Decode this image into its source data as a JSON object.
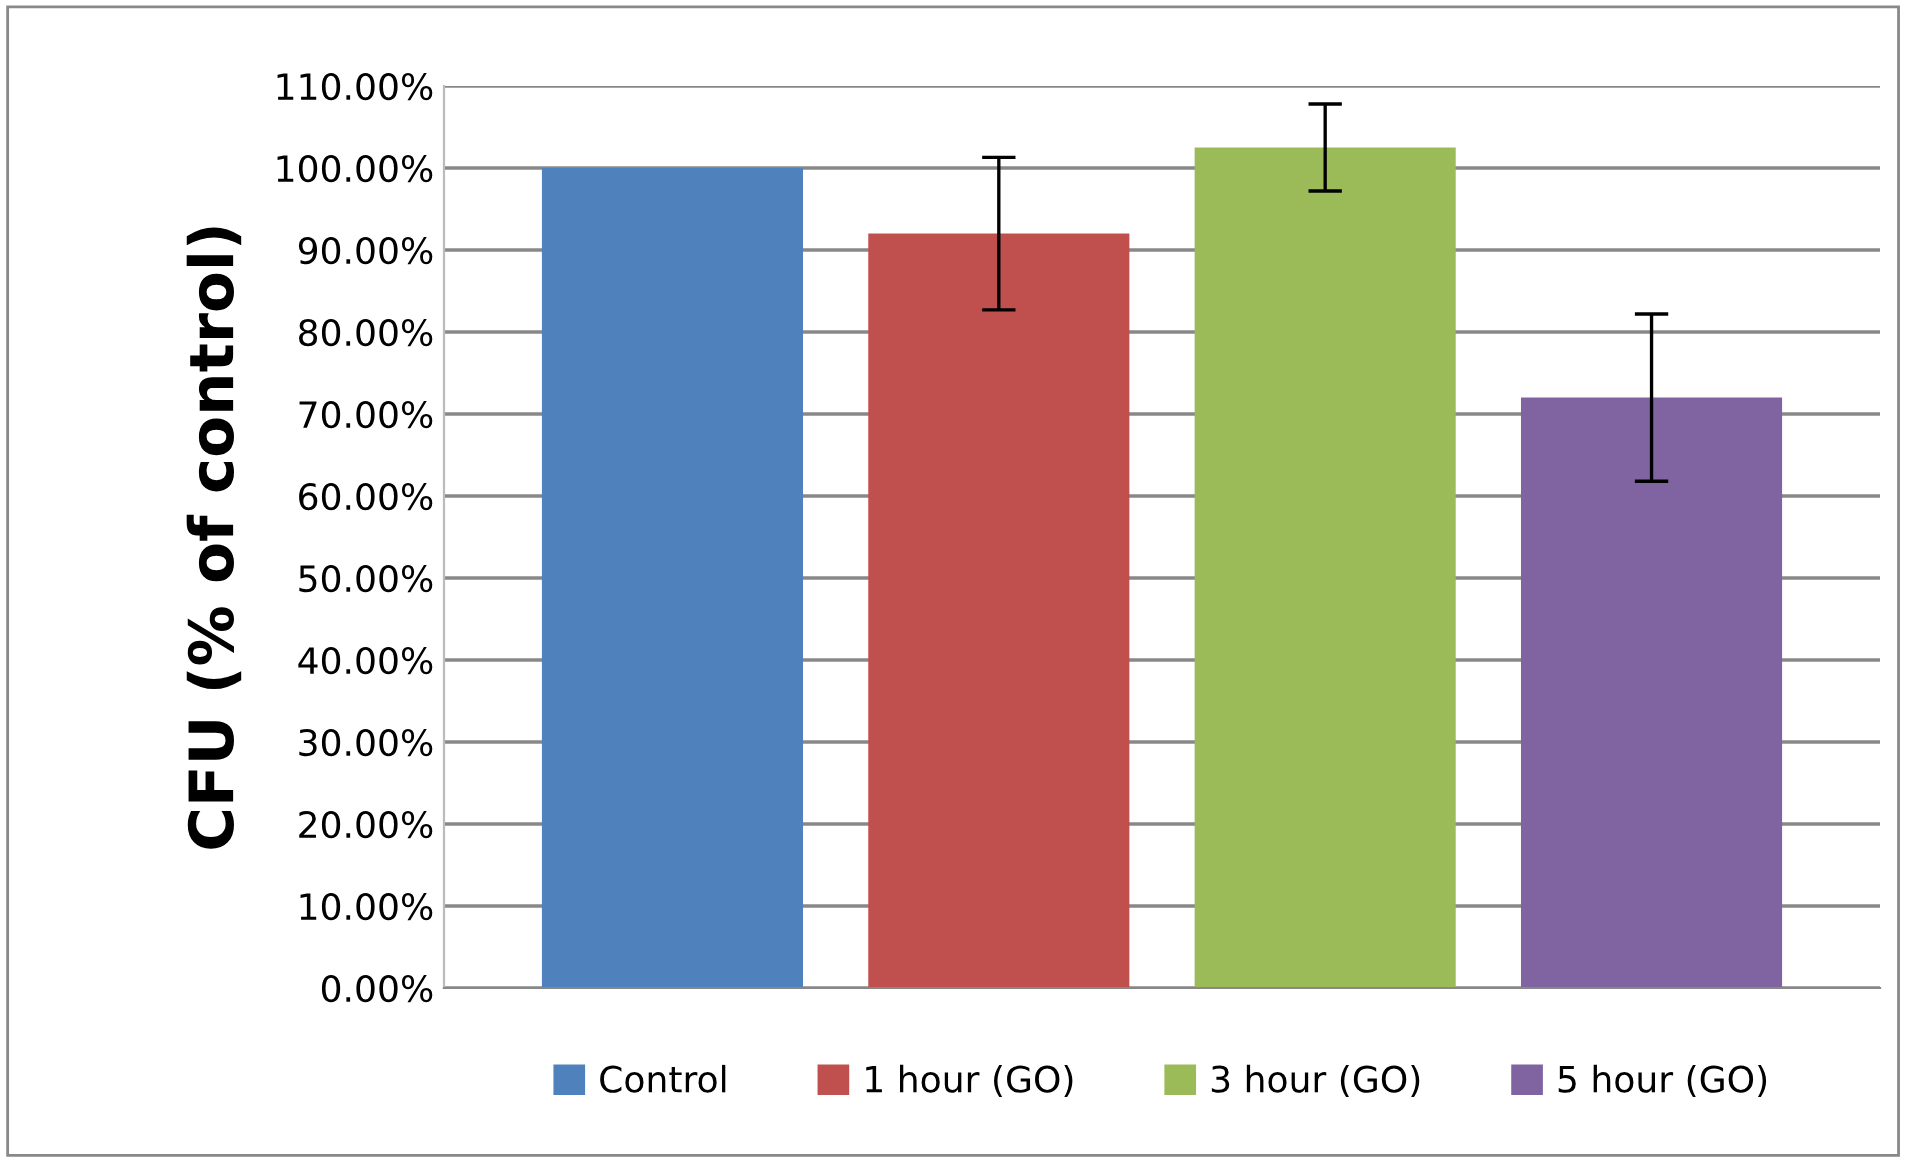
{
  "chart_data": {
    "type": "bar",
    "ylabel": "CFU (% of control)",
    "categories": [
      null,
      null,
      null,
      null
    ],
    "series": [
      {
        "name": "Control",
        "color": "#4f81bd",
        "values": [
          100,
          null,
          null,
          null
        ],
        "errors": [
          null,
          null,
          null,
          null
        ]
      },
      {
        "name": "1 hour (GO)",
        "color": "#c0504d",
        "values": [
          null,
          92,
          null,
          null
        ],
        "errors": [
          null,
          9.3,
          null,
          null
        ]
      },
      {
        "name": "3 hour (GO)",
        "color": "#9bbb59",
        "values": [
          null,
          null,
          102.5,
          null
        ],
        "errors": [
          null,
          null,
          5.3,
          null
        ]
      },
      {
        "name": "5 hour (GO)",
        "color": "#8064a2",
        "values": [
          null,
          null,
          null,
          72
        ],
        "errors": [
          null,
          null,
          null,
          10.2
        ]
      }
    ],
    "ylim": [
      0,
      110
    ],
    "yticks": [
      {
        "value": 0,
        "label": "0.00%"
      },
      {
        "value": 10,
        "label": "10.00%"
      },
      {
        "value": 20,
        "label": "20.00%"
      },
      {
        "value": 30,
        "label": "30.00%"
      },
      {
        "value": 40,
        "label": "40.00%"
      },
      {
        "value": 50,
        "label": "50.00%"
      },
      {
        "value": 60,
        "label": "60.00%"
      },
      {
        "value": 70,
        "label": "70.00%"
      },
      {
        "value": 80,
        "label": "80.00%"
      },
      {
        "value": 90,
        "label": "90.00%"
      },
      {
        "value": 100,
        "label": "100.00%"
      },
      {
        "value": 110,
        "label": "110.00%"
      }
    ],
    "grid": "y",
    "legend": "bottom"
  }
}
